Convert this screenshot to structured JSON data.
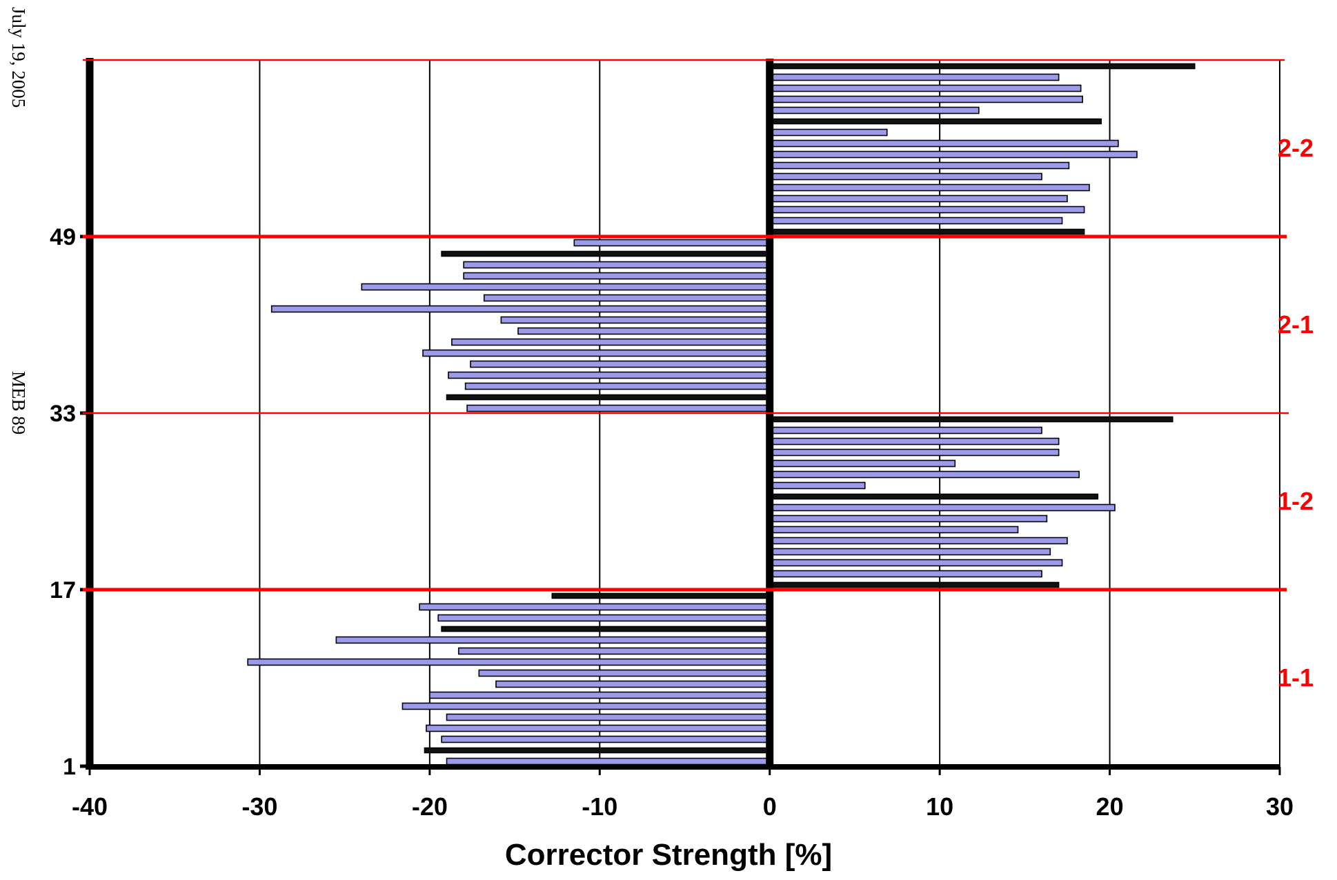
{
  "side_texts": {
    "date": "July 19, 2005",
    "id": "MEB 89"
  },
  "chart_data": {
    "type": "bar",
    "orientation": "horizontal",
    "title": "",
    "xlabel": "Corrector Strength [%]",
    "ylabel": "",
    "xlim": [
      -40,
      30
    ],
    "ylim": [
      1,
      62
    ],
    "x_ticks": [
      "-40",
      "-30",
      "-20",
      "-10",
      "0",
      "10",
      "20",
      "30"
    ],
    "y_ticks": [
      {
        "value": 1,
        "label": "1"
      },
      {
        "value": 17,
        "label": "17"
      },
      {
        "value": 33,
        "label": "33"
      },
      {
        "value": 49,
        "label": "49"
      }
    ],
    "grid": "vertical",
    "sections": [
      {
        "label": "1-1",
        "from": 1,
        "to": 16
      },
      {
        "label": "1-2",
        "from": 17,
        "to": 32
      },
      {
        "label": "2-1",
        "from": 33,
        "to": 48
      },
      {
        "label": "2-2",
        "from": 49,
        "to": 64
      }
    ],
    "boundaries": [
      17,
      33,
      49,
      65
    ],
    "colors": {
      "bar_fill": "#9b9bec",
      "bar_edge": "#000000",
      "dark_bar": "#111111",
      "section_line": "#ff0000",
      "section_label": "#ff0000"
    },
    "values": [
      -19,
      -20.3,
      -19.3,
      -20.2,
      -19,
      -21.6,
      -20,
      -16.1,
      -17.1,
      -30.7,
      -18.3,
      -25.5,
      -19.3,
      -19.5,
      -20.6,
      -12.8,
      17,
      16,
      17.2,
      16.5,
      17.5,
      14.6,
      16.3,
      20.3,
      19.3,
      5.6,
      18.2,
      10.9,
      17,
      17,
      16,
      23.7,
      -17.8,
      -19,
      -17.9,
      -18.9,
      -17.6,
      -20.4,
      -18.7,
      -14.8,
      -15.8,
      -29.3,
      -16.8,
      -24,
      -18,
      -18,
      -19.3,
      -11.5,
      18.5,
      17.2,
      18.5,
      17.5,
      18.8,
      16,
      17.6,
      21.6,
      20.5,
      6.9,
      19.5,
      12.3,
      18.4,
      18.3,
      17,
      25
    ],
    "dark_indices": [
      1,
      12,
      15,
      16,
      24,
      31,
      33,
      46,
      48,
      58,
      63
    ]
  }
}
